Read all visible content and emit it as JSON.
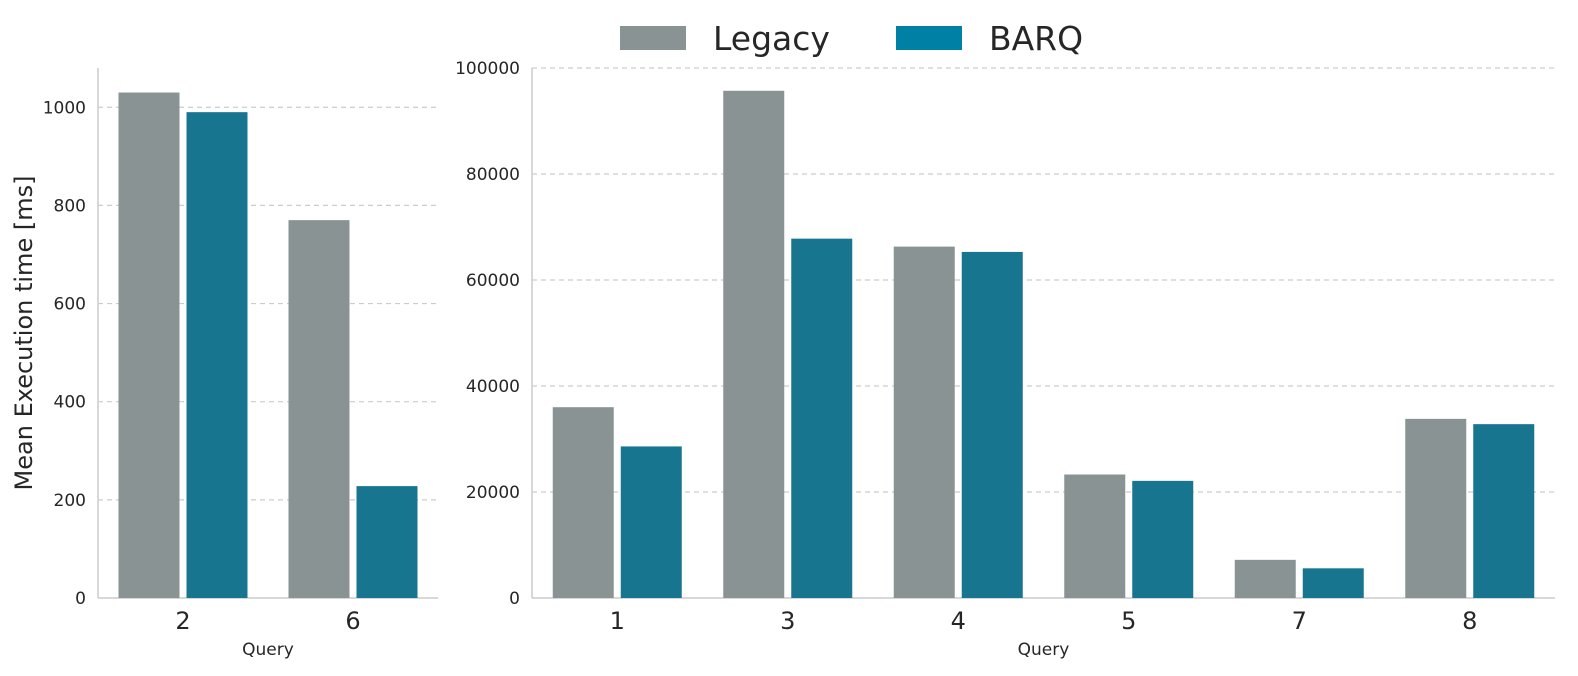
{
  "legend": {
    "items": [
      {
        "label": "Legacy",
        "color": "#8a9393"
      },
      {
        "label": "BARQ",
        "color": "#0080a5"
      }
    ]
  },
  "chart_data": [
    {
      "type": "bar",
      "categories": [
        "2",
        "6"
      ],
      "series": [
        {
          "name": "Legacy",
          "color": "#8a9393",
          "values": [
            1030,
            770
          ]
        },
        {
          "name": "BARQ",
          "color": "#177590",
          "values": [
            990,
            228
          ]
        }
      ],
      "xlabel": "Query",
      "ylabel": "Mean Execution time [ms]",
      "ylim": [
        0,
        1080
      ],
      "yticks": [
        0,
        200,
        400,
        600,
        800,
        1000
      ],
      "grid": "horizontal dashed"
    },
    {
      "type": "bar",
      "categories": [
        "1",
        "3",
        "4",
        "5",
        "7",
        "8"
      ],
      "series": [
        {
          "name": "Legacy",
          "color": "#8a9393",
          "values": [
            36000,
            95700,
            66300,
            23300,
            7200,
            33800
          ]
        },
        {
          "name": "BARQ",
          "color": "#177590",
          "values": [
            28600,
            67800,
            65300,
            22100,
            5600,
            32800
          ]
        }
      ],
      "xlabel": "Query",
      "ylabel": "",
      "ylim": [
        0,
        100000
      ],
      "yticks": [
        0,
        20000,
        40000,
        60000,
        80000,
        100000
      ],
      "grid": "horizontal dashed"
    }
  ]
}
